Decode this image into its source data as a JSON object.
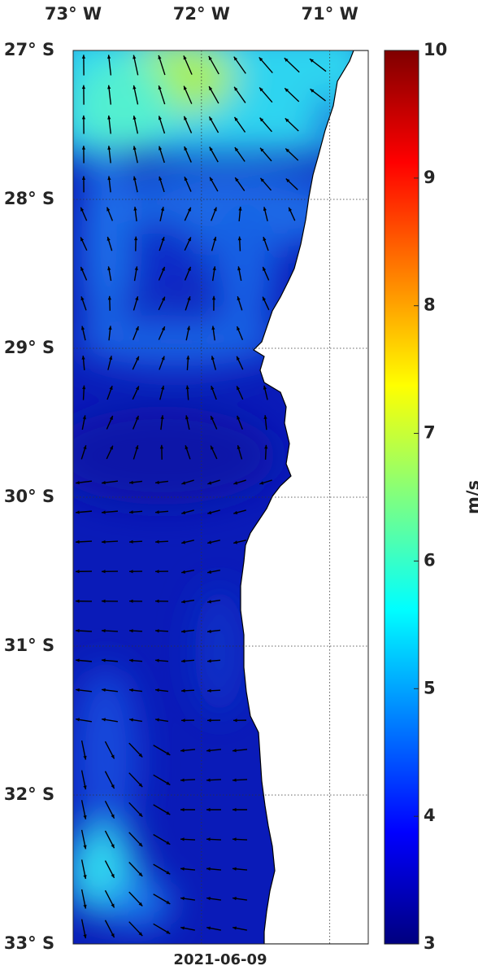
{
  "map": {
    "xlim": [
      -73,
      -70.7
    ],
    "xticks": [
      {
        "value": -73,
        "label": "73° W"
      },
      {
        "value": -72,
        "label": "72° W"
      },
      {
        "value": -71,
        "label": "71° W"
      }
    ],
    "ylim": [
      -33,
      -27
    ],
    "yticks": [
      {
        "value": -27,
        "label": "27° S"
      },
      {
        "value": -28,
        "label": "28° S"
      },
      {
        "value": -29,
        "label": "29° S"
      },
      {
        "value": -30,
        "label": "30° S"
      },
      {
        "value": -31,
        "label": "31° S"
      },
      {
        "value": -32,
        "label": "32° S"
      },
      {
        "value": -33,
        "label": "33° S"
      }
    ],
    "colorbar": {
      "label": "m/s",
      "lim": [
        3,
        10
      ],
      "ticks": [
        3,
        4,
        5,
        6,
        7,
        8,
        9,
        10
      ]
    },
    "date": "2021-06-09"
  }
}
